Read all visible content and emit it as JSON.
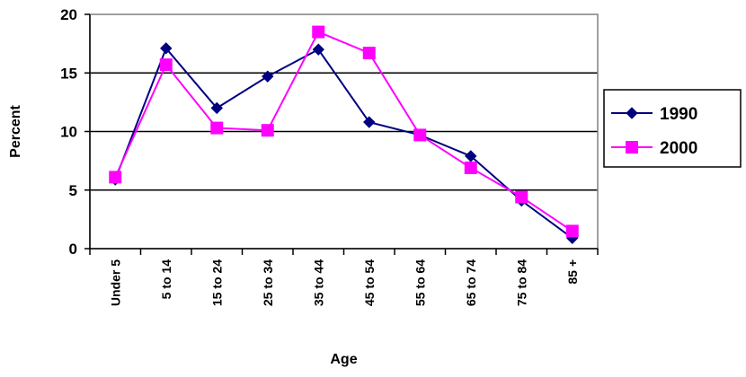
{
  "chart_data": {
    "type": "line",
    "title": "",
    "xlabel": "Age",
    "ylabel": "Percent",
    "categories": [
      "Under 5",
      "5 to 14",
      "15 to 24",
      "25 to 34",
      "35 to 44",
      "45 to 54",
      "55 to 64",
      "65 to 74",
      "75 to 84",
      "85 +"
    ],
    "ylim": [
      0,
      20
    ],
    "yticks": [
      "0",
      "5",
      "10",
      "15",
      "20"
    ],
    "grid": true,
    "legend_position": "right",
    "series": [
      {
        "name": "1990",
        "marker": "diamond",
        "color": "#000080",
        "values": [
          5.9,
          17.1,
          12.0,
          14.7,
          17.0,
          10.8,
          9.7,
          7.9,
          4.1,
          0.9
        ]
      },
      {
        "name": "2000",
        "marker": "square",
        "color": "#FF00FF",
        "values": [
          6.1,
          15.7,
          10.3,
          10.1,
          18.5,
          16.7,
          9.7,
          6.9,
          4.4,
          1.5
        ]
      }
    ]
  }
}
